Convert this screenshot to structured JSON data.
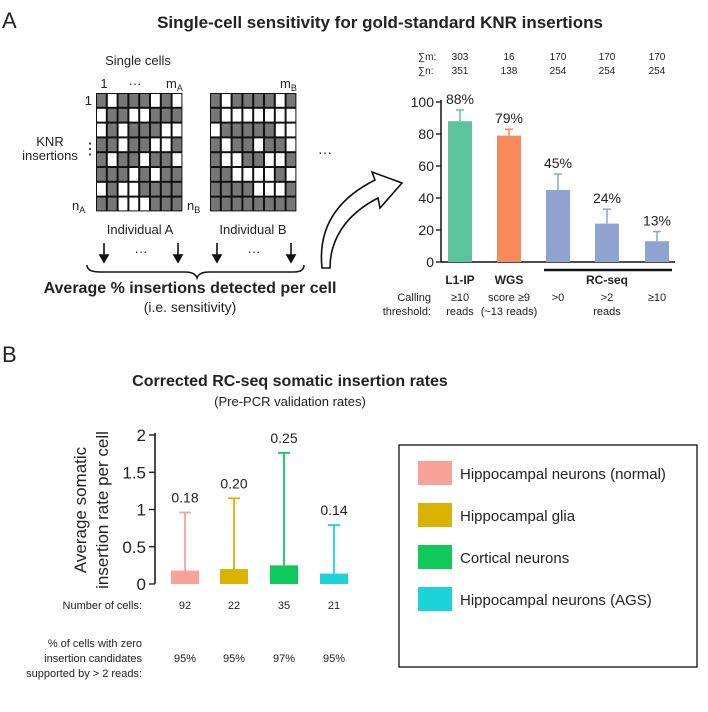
{
  "panel_a": {
    "letter": "A",
    "title": "Single-cell sensitivity for gold-standard KNR insertions",
    "schematic": {
      "single_cells": "Single cells",
      "col_first": "1",
      "col_dots": "···",
      "col_last_a": "m",
      "col_last_a_sub": "A",
      "col_last_b": "m",
      "col_last_b_sub": "B",
      "row_first": "1",
      "row_last_a": "n",
      "row_last_a_sub": "A",
      "row_last_b": "n",
      "row_last_b_sub": "B",
      "knr_line1": "KNR",
      "knr_line2": "insertions",
      "individual_a": "Individual A",
      "individual_b": "Individual B",
      "more_dots": "···",
      "summary": "Average % insertions detected per cell",
      "summary_sub": "(i.e. sensitivity)"
    },
    "sum_m_label": "∑m:",
    "sum_n_label": "∑n:",
    "calling_label_1": "Calling",
    "calling_label_2": "threshold:",
    "rcseq_group": "RC-seq"
  },
  "panel_b": {
    "letter": "B",
    "title": "Corrected RC-seq somatic insertion rates",
    "subtitle": "(Pre-PCR validation rates)",
    "cells_label": "Number of cells:",
    "zero_label_1": "% of cells with zero",
    "zero_label_2": "insertion candidates",
    "zero_label_3": "supported by > 2 reads:"
  },
  "chart_data": [
    {
      "type": "bar",
      "categories": [
        "L1-IP",
        "WGS",
        "RC-seq >0",
        "RC-seq >2",
        "RC-seq ≥10"
      ],
      "category_labels": [
        "L1-IP",
        "WGS",
        "",
        "",
        ""
      ],
      "values": [
        88,
        79,
        45,
        24,
        13
      ],
      "data_labels": [
        "88%",
        "79%",
        "45%",
        "24%",
        "13%"
      ],
      "error_upper": [
        95,
        83,
        55,
        33,
        19
      ],
      "colors": [
        "#5cc49c",
        "#f98a5c",
        "#8fa2d0",
        "#8fa2d0",
        "#8fa2d0"
      ],
      "sum_m": [
        "303",
        "16",
        "170",
        "170",
        "170"
      ],
      "sum_n": [
        "351",
        "138",
        "254",
        "254",
        "254"
      ],
      "thresholds": [
        [
          "≥10",
          "reads"
        ],
        [
          "score ≥9",
          "(~13 reads)"
        ],
        [
          ">0",
          ""
        ],
        [
          ">2",
          "reads"
        ],
        [
          "≥10",
          ""
        ]
      ],
      "ylim": [
        0,
        100
      ],
      "yticks": [
        "0",
        "20",
        "40",
        "60",
        "80",
        "100"
      ],
      "grid": false
    },
    {
      "type": "bar",
      "categories": [
        "Hippocampal neurons (normal)",
        "Hippocampal glia",
        "Cortical neurons",
        "Hippocampal neurons (AGS)"
      ],
      "values": [
        0.18,
        0.2,
        0.25,
        0.14
      ],
      "data_labels": [
        "0.18",
        "0.20",
        "0.25",
        "0.14"
      ],
      "error_upper": [
        0.96,
        1.15,
        1.76,
        0.79
      ],
      "colors": [
        "#f9a29a",
        "#d9b300",
        "#0fc95a",
        "#1dd3d9"
      ],
      "number_of_cells": [
        "92",
        "22",
        "35",
        "21"
      ],
      "pct_zero": [
        "95%",
        "95%",
        "97%",
        "95%"
      ],
      "ylabel": "Average somatic insertion rate per cell",
      "ylabel_lines": [
        "Average somatic",
        "insertion rate per cell"
      ],
      "ylim": [
        0,
        2
      ],
      "yticks": [
        "0",
        "0.5",
        "1",
        "1.5",
        "2"
      ],
      "legend": [
        "Hippocampal neurons (normal)",
        "Hippocampal glia",
        "Cortical neurons",
        "Hippocampal neurons (AGS)"
      ],
      "legend_position": "right",
      "grid": false
    }
  ]
}
